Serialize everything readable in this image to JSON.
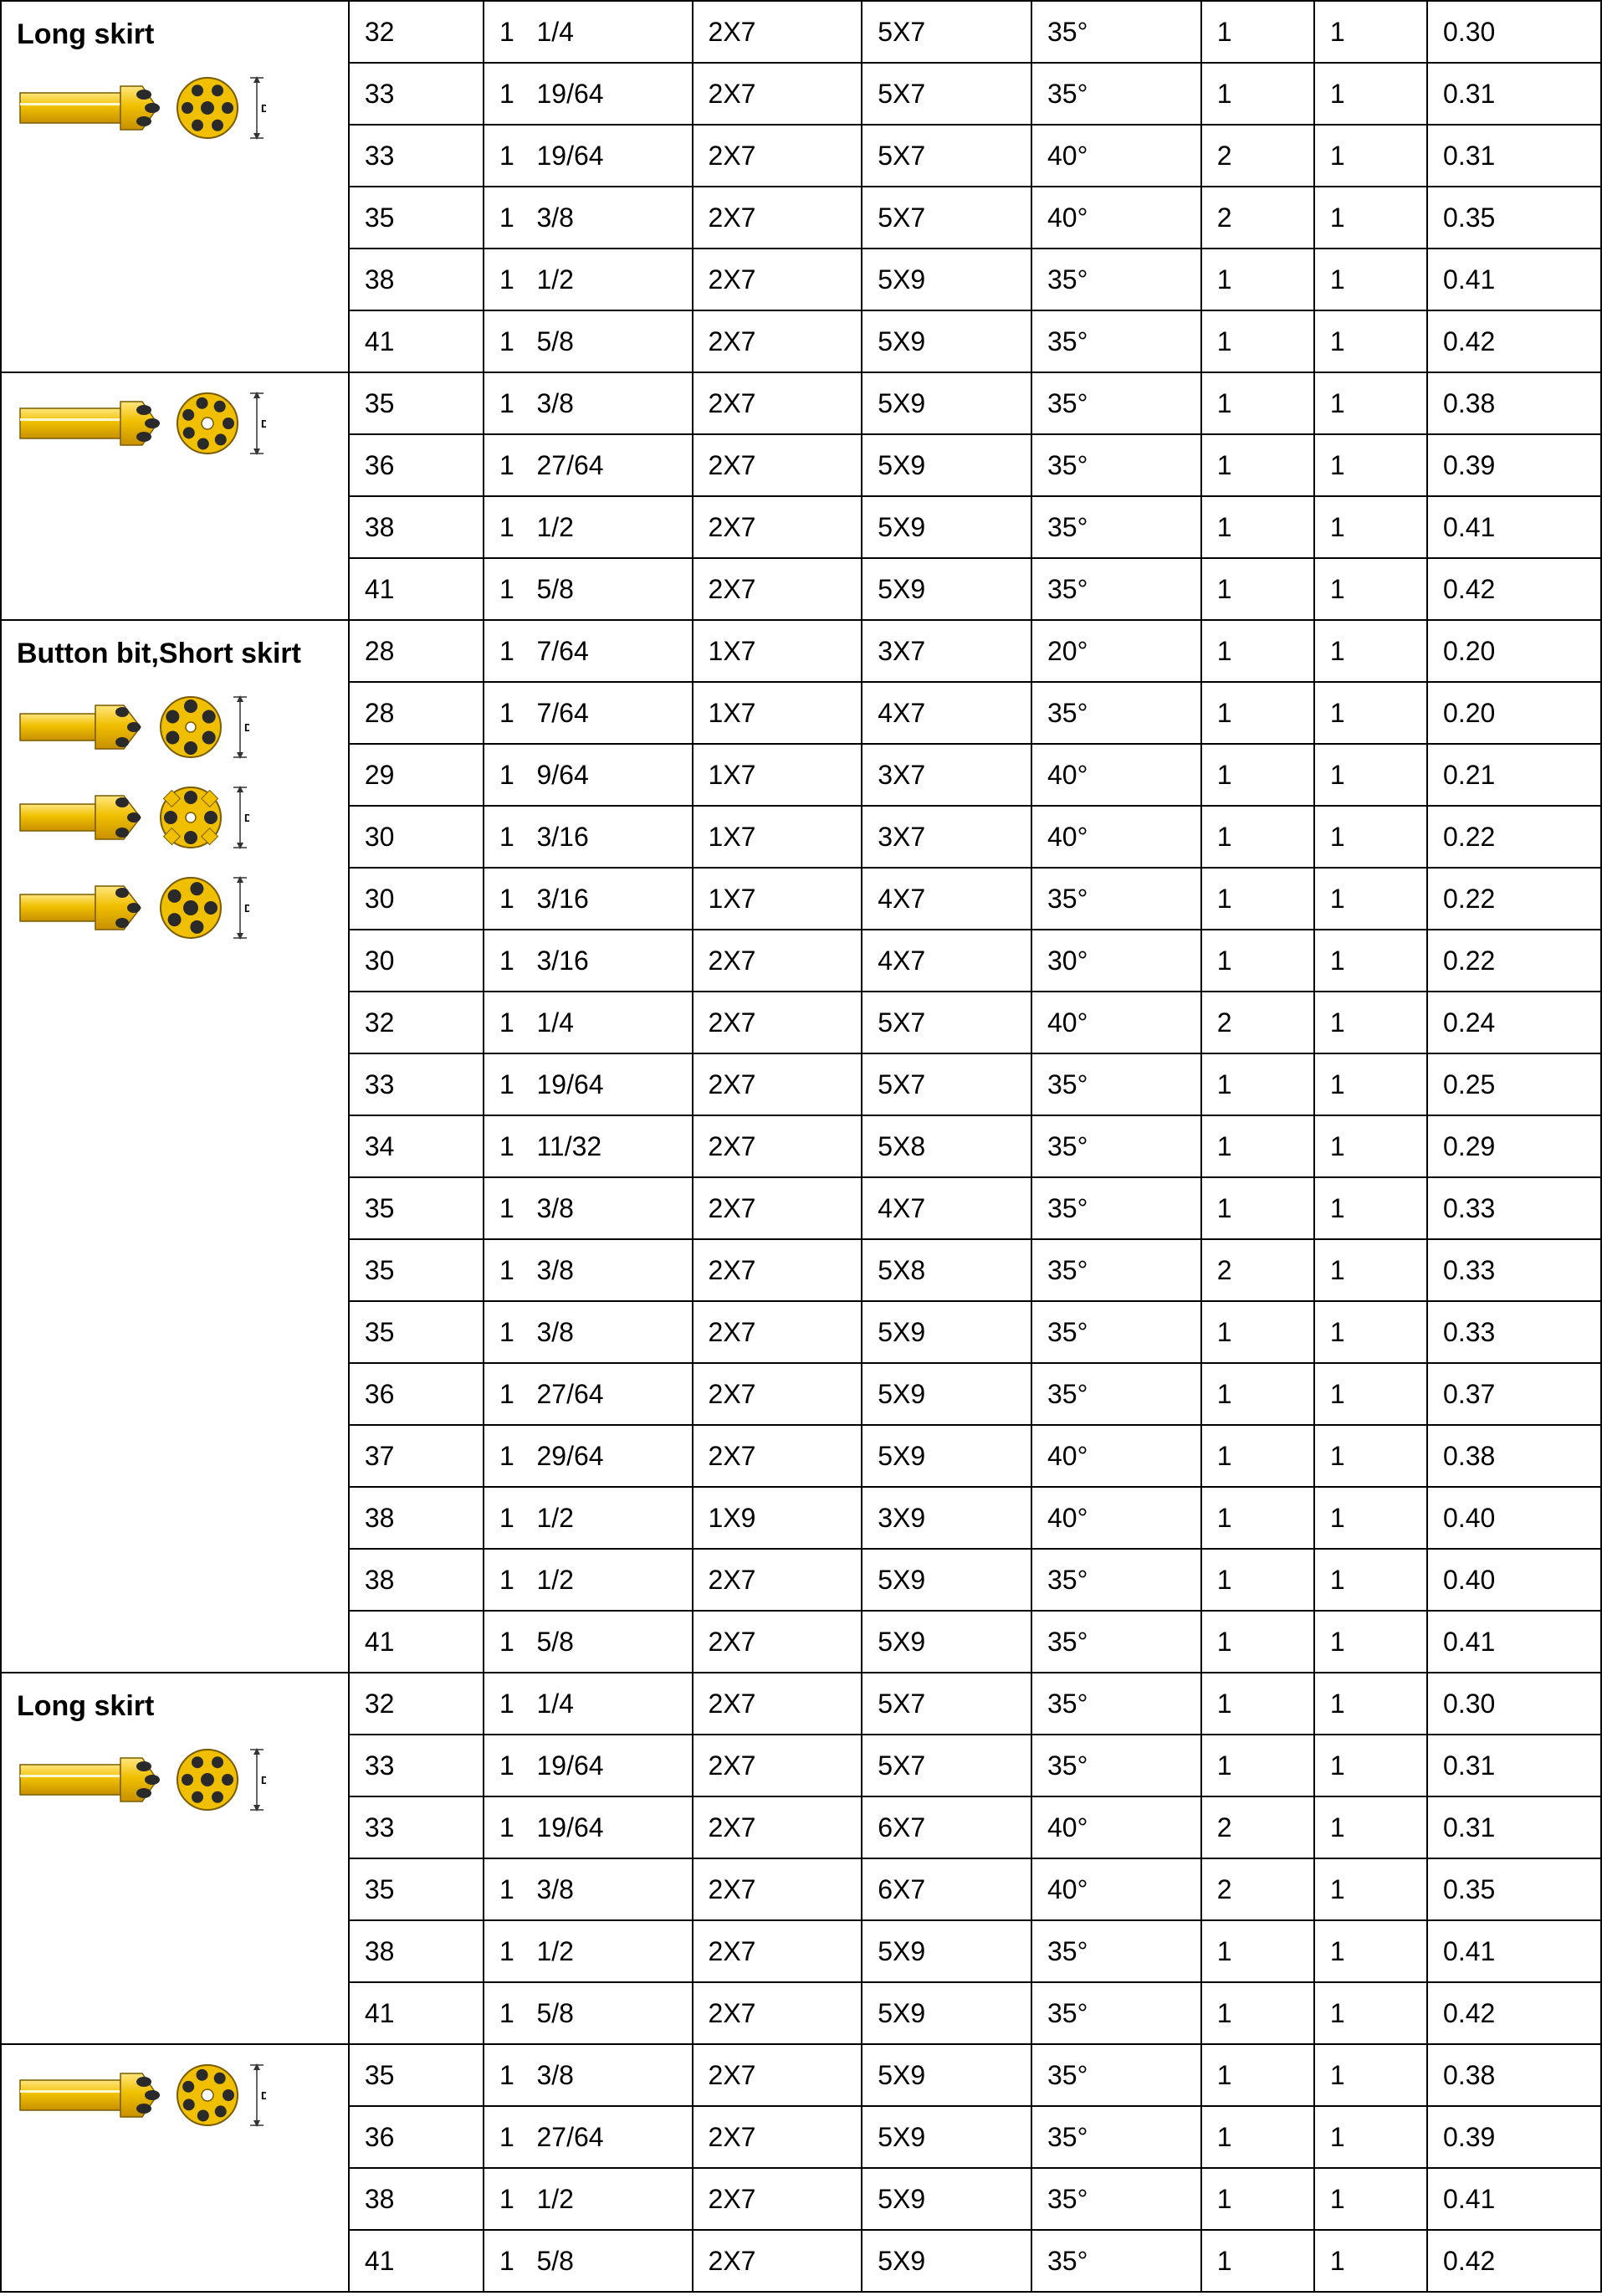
{
  "sections": [
    {
      "label": "Long skirt",
      "rows": [
        {
          "c1": "32",
          "c2a": "1",
          "c2b": "1/4",
          "c3": "2X7",
          "c4": "5X7",
          "c5": "35°",
          "c6": "1",
          "c7": "1",
          "c8": "0.30"
        },
        {
          "c1": "33",
          "c2a": "1",
          "c2b": "19/64",
          "c3": "2X7",
          "c4": "5X7",
          "c5": "35°",
          "c6": "1",
          "c7": "1",
          "c8": "0.31"
        },
        {
          "c1": "33",
          "c2a": "1",
          "c2b": "19/64",
          "c3": "2X7",
          "c4": "5X7",
          "c5": "40°",
          "c6": "2",
          "c7": "1",
          "c8": "0.31"
        },
        {
          "c1": "35",
          "c2a": "1",
          "c2b": "3/8",
          "c3": "2X7",
          "c4": "5X7",
          "c5": "40°",
          "c6": "2",
          "c7": "1",
          "c8": "0.35"
        },
        {
          "c1": "38",
          "c2a": "1",
          "c2b": "1/2",
          "c3": "2X7",
          "c4": "5X9",
          "c5": "35°",
          "c6": "1",
          "c7": "1",
          "c8": "0.41"
        },
        {
          "c1": "41",
          "c2a": "1",
          "c2b": "5/8",
          "c3": "2X7",
          "c4": "5X9",
          "c5": "35°",
          "c6": "1",
          "c7": "1",
          "c8": "0.42"
        }
      ]
    },
    {
      "label": "",
      "rows": [
        {
          "c1": "35",
          "c2a": "1",
          "c2b": "3/8",
          "c3": "2X7",
          "c4": "5X9",
          "c5": "35°",
          "c6": "1",
          "c7": "1",
          "c8": "0.38"
        },
        {
          "c1": "36",
          "c2a": "1",
          "c2b": "27/64",
          "c3": "2X7",
          "c4": "5X9",
          "c5": "35°",
          "c6": "1",
          "c7": "1",
          "c8": "0.39"
        },
        {
          "c1": "38",
          "c2a": "1",
          "c2b": "1/2",
          "c3": "2X7",
          "c4": "5X9",
          "c5": "35°",
          "c6": "1",
          "c7": "1",
          "c8": "0.41"
        },
        {
          "c1": "41",
          "c2a": "1",
          "c2b": "5/8",
          "c3": "2X7",
          "c4": "5X9",
          "c5": "35°",
          "c6": "1",
          "c7": "1",
          "c8": "0.42"
        }
      ]
    },
    {
      "label": "Button bit,Short skirt",
      "rows": [
        {
          "c1": "28",
          "c2a": "1",
          "c2b": "7/64",
          "c3": "1X7",
          "c4": "3X7",
          "c5": "20°",
          "c6": "1",
          "c7": "1",
          "c8": "0.20"
        },
        {
          "c1": "28",
          "c2a": "1",
          "c2b": "7/64",
          "c3": "1X7",
          "c4": "4X7",
          "c5": "35°",
          "c6": "1",
          "c7": "1",
          "c8": "0.20"
        },
        {
          "c1": "29",
          "c2a": "1",
          "c2b": "9/64",
          "c3": "1X7",
          "c4": "3X7",
          "c5": "40°",
          "c6": "1",
          "c7": "1",
          "c8": "0.21"
        },
        {
          "c1": "30",
          "c2a": "1",
          "c2b": "3/16",
          "c3": "1X7",
          "c4": "3X7",
          "c5": "40°",
          "c6": "1",
          "c7": "1",
          "c8": "0.22"
        },
        {
          "c1": "30",
          "c2a": "1",
          "c2b": "3/16",
          "c3": "1X7",
          "c4": "4X7",
          "c5": "35°",
          "c6": "1",
          "c7": "1",
          "c8": "0.22"
        },
        {
          "c1": "30",
          "c2a": "1",
          "c2b": "3/16",
          "c3": "2X7",
          "c4": "4X7",
          "c5": "30°",
          "c6": "1",
          "c7": "1",
          "c8": "0.22"
        },
        {
          "c1": "32",
          "c2a": "1",
          "c2b": "1/4",
          "c3": "2X7",
          "c4": "5X7",
          "c5": "40°",
          "c6": "2",
          "c7": "1",
          "c8": "0.24"
        },
        {
          "c1": "33",
          "c2a": "1",
          "c2b": "19/64",
          "c3": "2X7",
          "c4": "5X7",
          "c5": "35°",
          "c6": "1",
          "c7": "1",
          "c8": "0.25"
        },
        {
          "c1": "34",
          "c2a": "1",
          "c2b": "11/32",
          "c3": "2X7",
          "c4": "5X8",
          "c5": "35°",
          "c6": "1",
          "c7": "1",
          "c8": "0.29"
        },
        {
          "c1": "35",
          "c2a": "1",
          "c2b": "3/8",
          "c3": "2X7",
          "c4": "4X7",
          "c5": "35°",
          "c6": "1",
          "c7": "1",
          "c8": "0.33"
        },
        {
          "c1": "35",
          "c2a": "1",
          "c2b": "3/8",
          "c3": "2X7",
          "c4": "5X8",
          "c5": "35°",
          "c6": "2",
          "c7": "1",
          "c8": "0.33"
        },
        {
          "c1": "35",
          "c2a": "1",
          "c2b": "3/8",
          "c3": "2X7",
          "c4": "5X9",
          "c5": "35°",
          "c6": "1",
          "c7": "1",
          "c8": "0.33"
        },
        {
          "c1": "36",
          "c2a": "1",
          "c2b": "27/64",
          "c3": "2X7",
          "c4": "5X9",
          "c5": "35°",
          "c6": "1",
          "c7": "1",
          "c8": "0.37"
        },
        {
          "c1": "37",
          "c2a": "1",
          "c2b": "29/64",
          "c3": "2X7",
          "c4": "5X9",
          "c5": "40°",
          "c6": "1",
          "c7": "1",
          "c8": "0.38"
        },
        {
          "c1": "38",
          "c2a": "1",
          "c2b": "1/2",
          "c3": "1X9",
          "c4": "3X9",
          "c5": "40°",
          "c6": "1",
          "c7": "1",
          "c8": "0.40"
        },
        {
          "c1": "38",
          "c2a": "1",
          "c2b": "1/2",
          "c3": "2X7",
          "c4": "5X9",
          "c5": "35°",
          "c6": "1",
          "c7": "1",
          "c8": "0.40"
        },
        {
          "c1": "41",
          "c2a": "1",
          "c2b": "5/8",
          "c3": "2X7",
          "c4": "5X9",
          "c5": "35°",
          "c6": "1",
          "c7": "1",
          "c8": "0.41"
        }
      ]
    },
    {
      "label": "Long skirt",
      "rows": [
        {
          "c1": "32",
          "c2a": "1",
          "c2b": "1/4",
          "c3": "2X7",
          "c4": "5X7",
          "c5": "35°",
          "c6": "1",
          "c7": "1",
          "c8": "0.30"
        },
        {
          "c1": "33",
          "c2a": "1",
          "c2b": "19/64",
          "c3": "2X7",
          "c4": "5X7",
          "c5": "35°",
          "c6": "1",
          "c7": "1",
          "c8": "0.31"
        },
        {
          "c1": "33",
          "c2a": "1",
          "c2b": "19/64",
          "c3": "2X7",
          "c4": "6X7",
          "c5": "40°",
          "c6": "2",
          "c7": "1",
          "c8": "0.31"
        },
        {
          "c1": "35",
          "c2a": "1",
          "c2b": "3/8",
          "c3": "2X7",
          "c4": "6X7",
          "c5": "40°",
          "c6": "2",
          "c7": "1",
          "c8": "0.35"
        },
        {
          "c1": "38",
          "c2a": "1",
          "c2b": "1/2",
          "c3": "2X7",
          "c4": "5X9",
          "c5": "35°",
          "c6": "1",
          "c7": "1",
          "c8": "0.41"
        },
        {
          "c1": "41",
          "c2a": "1",
          "c2b": "5/8",
          "c3": "2X7",
          "c4": "5X9",
          "c5": "35°",
          "c6": "1",
          "c7": "1",
          "c8": "0.42"
        }
      ]
    },
    {
      "label": "",
      "rows": [
        {
          "c1": "35",
          "c2a": "1",
          "c2b": "3/8",
          "c3": "2X7",
          "c4": "5X9",
          "c5": "35°",
          "c6": "1",
          "c7": "1",
          "c8": "0.38"
        },
        {
          "c1": "36",
          "c2a": "1",
          "c2b": "27/64",
          "c3": "2X7",
          "c4": "5X9",
          "c5": "35°",
          "c6": "1",
          "c7": "1",
          "c8": "0.39"
        },
        {
          "c1": "38",
          "c2a": "1",
          "c2b": "1/2",
          "c3": "2X7",
          "c4": "5X9",
          "c5": "35°",
          "c6": "1",
          "c7": "1",
          "c8": "0.41"
        },
        {
          "c1": "41",
          "c2a": "1",
          "c2b": "5/8",
          "c3": "2X7",
          "c4": "5X9",
          "c5": "35°",
          "c6": "1",
          "c7": "1",
          "c8": "0.42"
        }
      ]
    }
  ],
  "colors": {
    "bit_body": "#f0c000",
    "bit_shadow": "#c89000",
    "bit_tips": "#2a2a2a",
    "dim_line": "#333333"
  }
}
